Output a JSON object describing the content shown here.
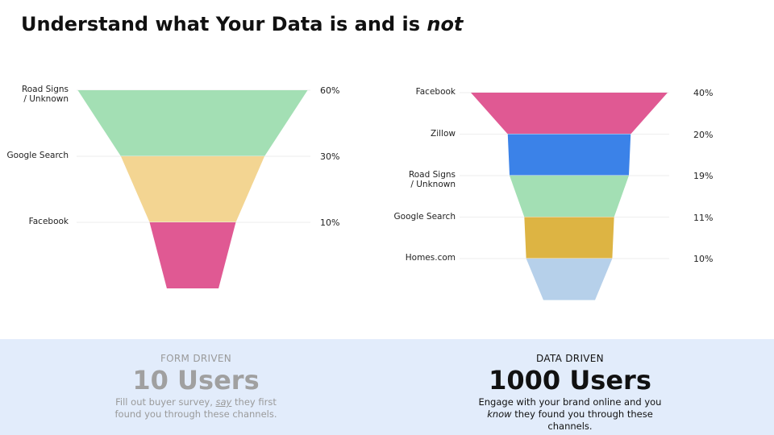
{
  "title": [
    "Understand what Your Data is and is ",
    "not"
  ],
  "chart_data": [
    {
      "type": "funnel",
      "categories": [
        "Road Signs\n/ Unknown",
        "Google Search",
        "Facebook"
      ],
      "values": [
        60,
        30,
        10
      ],
      "value_labels": [
        "60%",
        "30%",
        "10%"
      ],
      "colors": [
        "#a3dfb4",
        "#f3d592",
        "#e05993"
      ]
    },
    {
      "type": "funnel",
      "categories": [
        "Facebook",
        "Zillow",
        "Road Signs\n/ Unknown",
        "Google Search",
        "Homes.com"
      ],
      "values": [
        40,
        20,
        19,
        11,
        10
      ],
      "value_labels": [
        "40%",
        "20%",
        "19%",
        "11%",
        "10%"
      ],
      "colors": [
        "#e05993",
        "#3b82e8",
        "#a3dfb4",
        "#ddb443",
        "#b6d0ea"
      ]
    }
  ],
  "panels": [
    {
      "heading": "FORM DRIVEN",
      "headline": "10 Users",
      "description": [
        "Fill out buyer survey, ",
        "say",
        " they first found you through these channels."
      ]
    },
    {
      "heading": "DATA DRIVEN",
      "headline": "1000 Users",
      "description": [
        "Engage with your brand online and you ",
        "know",
        " they found you through these channels."
      ]
    }
  ]
}
